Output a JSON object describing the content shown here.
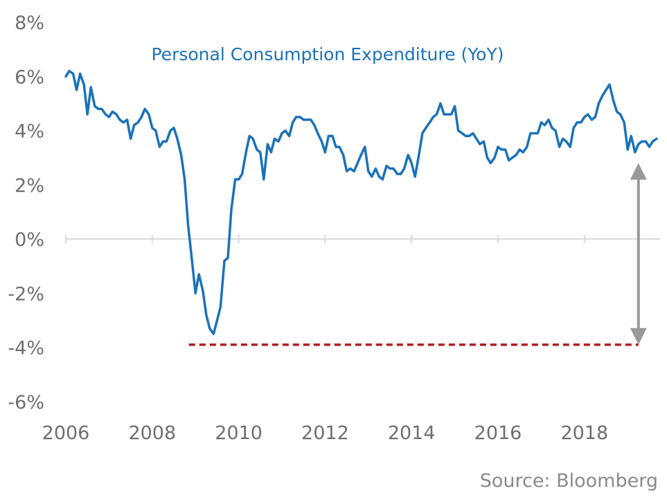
{
  "chart_data": {
    "type": "line",
    "title": "Personal Consumption Expenditure (YoY)",
    "xlabel": "",
    "ylabel": "",
    "source": "Source: Bloomberg",
    "ylim": [
      -6,
      8
    ],
    "xlim": [
      2006,
      2019.75
    ],
    "y_ticks": [
      8,
      6,
      4,
      2,
      0,
      -2,
      -4,
      -6
    ],
    "y_tick_labels": [
      "8%",
      "6%",
      "4%",
      "2%",
      "0%",
      "-2%",
      "-4%",
      "-6%"
    ],
    "x_ticks": [
      2006,
      2008,
      2010,
      2012,
      2014,
      2016,
      2018
    ],
    "x_tick_labels": [
      "2006",
      "2008",
      "2010",
      "2012",
      "2014",
      "2016",
      "2018"
    ],
    "grid": false,
    "line_color": "#1a72bb",
    "reference_line": {
      "y": -3.9,
      "x_start": 2008.85,
      "x_end": 2019.25,
      "color": "#b01e23",
      "style": "dashed"
    },
    "arrow": {
      "x": 2019.25,
      "y_top": 2.8,
      "y_bottom": -3.9,
      "color": "#999999"
    },
    "series": [
      {
        "x": [
          2006.0,
          2006.08,
          2006.17,
          2006.25,
          2006.33,
          2006.42,
          2006.5,
          2006.58,
          2006.67,
          2006.75,
          2006.83,
          2006.92,
          2007.0,
          2007.08,
          2007.17,
          2007.25,
          2007.33,
          2007.42,
          2007.5,
          2007.58,
          2007.67,
          2007.75,
          2007.83,
          2007.92,
          2008.0,
          2008.08,
          2008.17,
          2008.25,
          2008.33,
          2008.42,
          2008.5,
          2008.58,
          2008.67,
          2008.75,
          2008.83,
          2008.92,
          2009.0,
          2009.08,
          2009.17,
          2009.25,
          2009.33,
          2009.42,
          2009.5,
          2009.58,
          2009.67,
          2009.75,
          2009.83,
          2009.92,
          2010.0,
          2010.08,
          2010.17,
          2010.25,
          2010.33,
          2010.42,
          2010.5,
          2010.58,
          2010.67,
          2010.75,
          2010.83,
          2010.92,
          2011.0,
          2011.08,
          2011.17,
          2011.25,
          2011.33,
          2011.42,
          2011.5,
          2011.58,
          2011.67,
          2011.75,
          2011.83,
          2011.92,
          2012.0,
          2012.08,
          2012.17,
          2012.25,
          2012.33,
          2012.42,
          2012.5,
          2012.58,
          2012.67,
          2012.75,
          2012.83,
          2012.92,
          2013.0,
          2013.08,
          2013.17,
          2013.25,
          2013.33,
          2013.42,
          2013.5,
          2013.58,
          2013.67,
          2013.75,
          2013.83,
          2013.92,
          2014.0,
          2014.08,
          2014.17,
          2014.25,
          2014.33,
          2014.42,
          2014.5,
          2014.58,
          2014.67,
          2014.75,
          2014.83,
          2014.92,
          2015.0,
          2015.08,
          2015.17,
          2015.25,
          2015.33,
          2015.42,
          2015.5,
          2015.58,
          2015.67,
          2015.75,
          2015.83,
          2015.92,
          2016.0,
          2016.08,
          2016.17,
          2016.25,
          2016.33,
          2016.42,
          2016.5,
          2016.58,
          2016.67,
          2016.75,
          2016.83,
          2016.92,
          2017.0,
          2017.08,
          2017.17,
          2017.25,
          2017.33,
          2017.42,
          2017.5,
          2017.58,
          2017.67,
          2017.75,
          2017.83,
          2017.92,
          2018.0,
          2018.08,
          2018.17,
          2018.25,
          2018.33,
          2018.42,
          2018.5,
          2018.58,
          2018.67,
          2018.75,
          2018.83,
          2018.92,
          2019.0,
          2019.08,
          2019.17,
          2019.25,
          2019.33,
          2019.42,
          2019.5,
          2019.58,
          2019.67
        ],
        "values": [
          6.0,
          6.2,
          6.1,
          5.5,
          6.1,
          5.7,
          4.6,
          5.6,
          4.9,
          4.8,
          4.8,
          4.6,
          4.5,
          4.7,
          4.6,
          4.4,
          4.3,
          4.4,
          3.7,
          4.2,
          4.3,
          4.5,
          4.8,
          4.6,
          4.1,
          4.0,
          3.4,
          3.6,
          3.6,
          4.0,
          4.1,
          3.7,
          3.1,
          2.2,
          0.5,
          -0.8,
          -2.0,
          -1.3,
          -1.9,
          -2.8,
          -3.3,
          -3.5,
          -3.0,
          -2.5,
          -0.8,
          -0.7,
          1.1,
          2.2,
          2.2,
          2.4,
          3.2,
          3.8,
          3.7,
          3.3,
          3.2,
          2.2,
          3.5,
          3.2,
          3.7,
          3.6,
          3.9,
          4.0,
          3.8,
          4.3,
          4.5,
          4.5,
          4.4,
          4.4,
          4.4,
          4.2,
          3.9,
          3.6,
          3.2,
          3.8,
          3.8,
          3.4,
          3.4,
          3.1,
          2.5,
          2.6,
          2.5,
          2.8,
          3.1,
          3.4,
          2.5,
          2.3,
          2.6,
          2.3,
          2.2,
          2.7,
          2.6,
          2.6,
          2.4,
          2.4,
          2.6,
          3.1,
          2.8,
          2.3,
          3.1,
          3.9,
          4.1,
          4.3,
          4.5,
          4.6,
          5.0,
          4.6,
          4.6,
          4.6,
          4.9,
          4.0,
          3.9,
          3.8,
          3.8,
          3.9,
          3.7,
          3.5,
          3.6,
          3.0,
          2.8,
          3.0,
          3.4,
          3.3,
          3.3,
          2.9,
          3.0,
          3.1,
          3.3,
          3.2,
          3.4,
          3.9,
          3.9,
          3.9,
          4.3,
          4.2,
          4.4,
          4.1,
          4.0,
          3.4,
          3.7,
          3.6,
          3.4,
          4.1,
          4.3,
          4.3,
          4.5,
          4.6,
          4.4,
          4.5,
          5.0,
          5.3,
          5.5,
          5.7,
          5.1,
          4.7,
          4.6,
          4.3,
          3.3,
          3.8,
          3.2,
          3.5,
          3.6,
          3.6,
          3.4,
          3.6,
          3.7
        ]
      }
    ]
  }
}
